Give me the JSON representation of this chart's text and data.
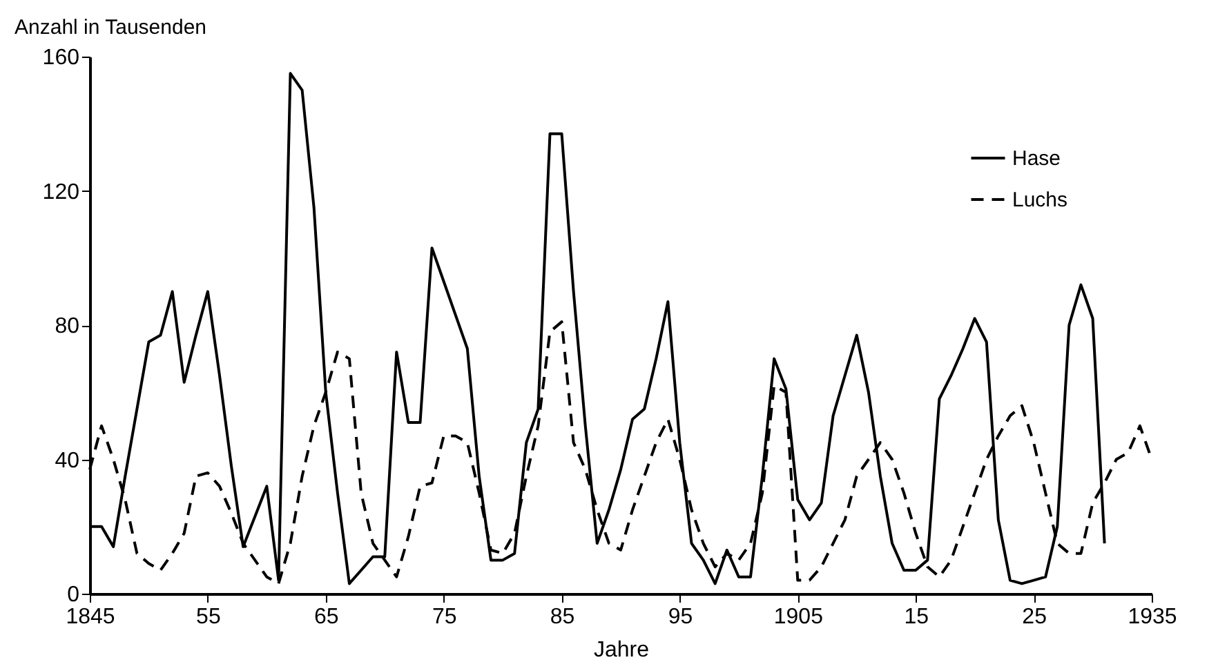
{
  "chart_data": {
    "type": "line",
    "xlabel": "Jahre",
    "ylabel": "Anzahl in Tausenden",
    "x": [
      1845,
      1846,
      1847,
      1848,
      1849,
      1850,
      1851,
      1852,
      1853,
      1854,
      1855,
      1856,
      1857,
      1858,
      1859,
      1860,
      1861,
      1862,
      1863,
      1864,
      1865,
      1866,
      1867,
      1868,
      1869,
      1870,
      1871,
      1872,
      1873,
      1874,
      1875,
      1876,
      1877,
      1878,
      1879,
      1880,
      1881,
      1882,
      1883,
      1884,
      1885,
      1886,
      1887,
      1888,
      1889,
      1890,
      1891,
      1892,
      1893,
      1894,
      1895,
      1896,
      1897,
      1898,
      1899,
      1900,
      1901,
      1902,
      1903,
      1904,
      1905,
      1906,
      1907,
      1908,
      1909,
      1910,
      1911,
      1912,
      1913,
      1914,
      1915,
      1916,
      1917,
      1918,
      1919,
      1920,
      1921,
      1922,
      1923,
      1924,
      1925,
      1926,
      1927,
      1928,
      1929,
      1930,
      1931,
      1932,
      1933,
      1934,
      1935
    ],
    "series": [
      {
        "name": "Hase",
        "color": "#000000",
        "line_style": "solid",
        "values": [
          20,
          20,
          14,
          35,
          55,
          75,
          77,
          90,
          63,
          77,
          90,
          65,
          38,
          14,
          23,
          32,
          4,
          155,
          150,
          115,
          60,
          30,
          3,
          7,
          11,
          11,
          72,
          51,
          51,
          103,
          93,
          83,
          73,
          35,
          10,
          10,
          12,
          45,
          55,
          137,
          137,
          90,
          50,
          15,
          25,
          37,
          52,
          55,
          70,
          87,
          45,
          15,
          10,
          3,
          13,
          5,
          5,
          35,
          70,
          61,
          28,
          22,
          27,
          53,
          65,
          77,
          60,
          35,
          15,
          7,
          7,
          10,
          58,
          65,
          73,
          82,
          75,
          22,
          4,
          3,
          4,
          5,
          20,
          80,
          92,
          82,
          15,
          null,
          null,
          null,
          null
        ]
      },
      {
        "name": "Luchs",
        "color": "#000000",
        "line_style": "dashed",
        "values": [
          37,
          50,
          40,
          28,
          12,
          9,
          7,
          12,
          18,
          35,
          36,
          32,
          24,
          15,
          10,
          5,
          3,
          15,
          35,
          50,
          60,
          72,
          70,
          30,
          15,
          10,
          5,
          17,
          32,
          33,
          47,
          47,
          45,
          30,
          13,
          12,
          18,
          35,
          50,
          78,
          81,
          45,
          37,
          25,
          15,
          13,
          25,
          35,
          45,
          52,
          40,
          25,
          15,
          8,
          12,
          10,
          15,
          30,
          62,
          60,
          4,
          4,
          8,
          15,
          22,
          35,
          40,
          45,
          40,
          30,
          18,
          8,
          5,
          10,
          20,
          30,
          40,
          47,
          53,
          56,
          45,
          30,
          15,
          12,
          12,
          27,
          33,
          40,
          42,
          50,
          40
        ]
      }
    ],
    "xlim": [
      1845,
      1935
    ],
    "xticks": [
      1845,
      {
        "value": 1855,
        "label": "55"
      },
      {
        "value": 1865,
        "label": "65"
      },
      {
        "value": 1875,
        "label": "75"
      },
      {
        "value": 1885,
        "label": "85"
      },
      {
        "value": 1895,
        "label": "95"
      },
      1905,
      {
        "value": 1915,
        "label": "15"
      },
      {
        "value": 1925,
        "label": "25"
      },
      1935
    ],
    "ylim": [
      0,
      160
    ],
    "yticks": [
      0,
      40,
      80,
      120,
      160
    ],
    "grid": false,
    "legend": "top right"
  }
}
